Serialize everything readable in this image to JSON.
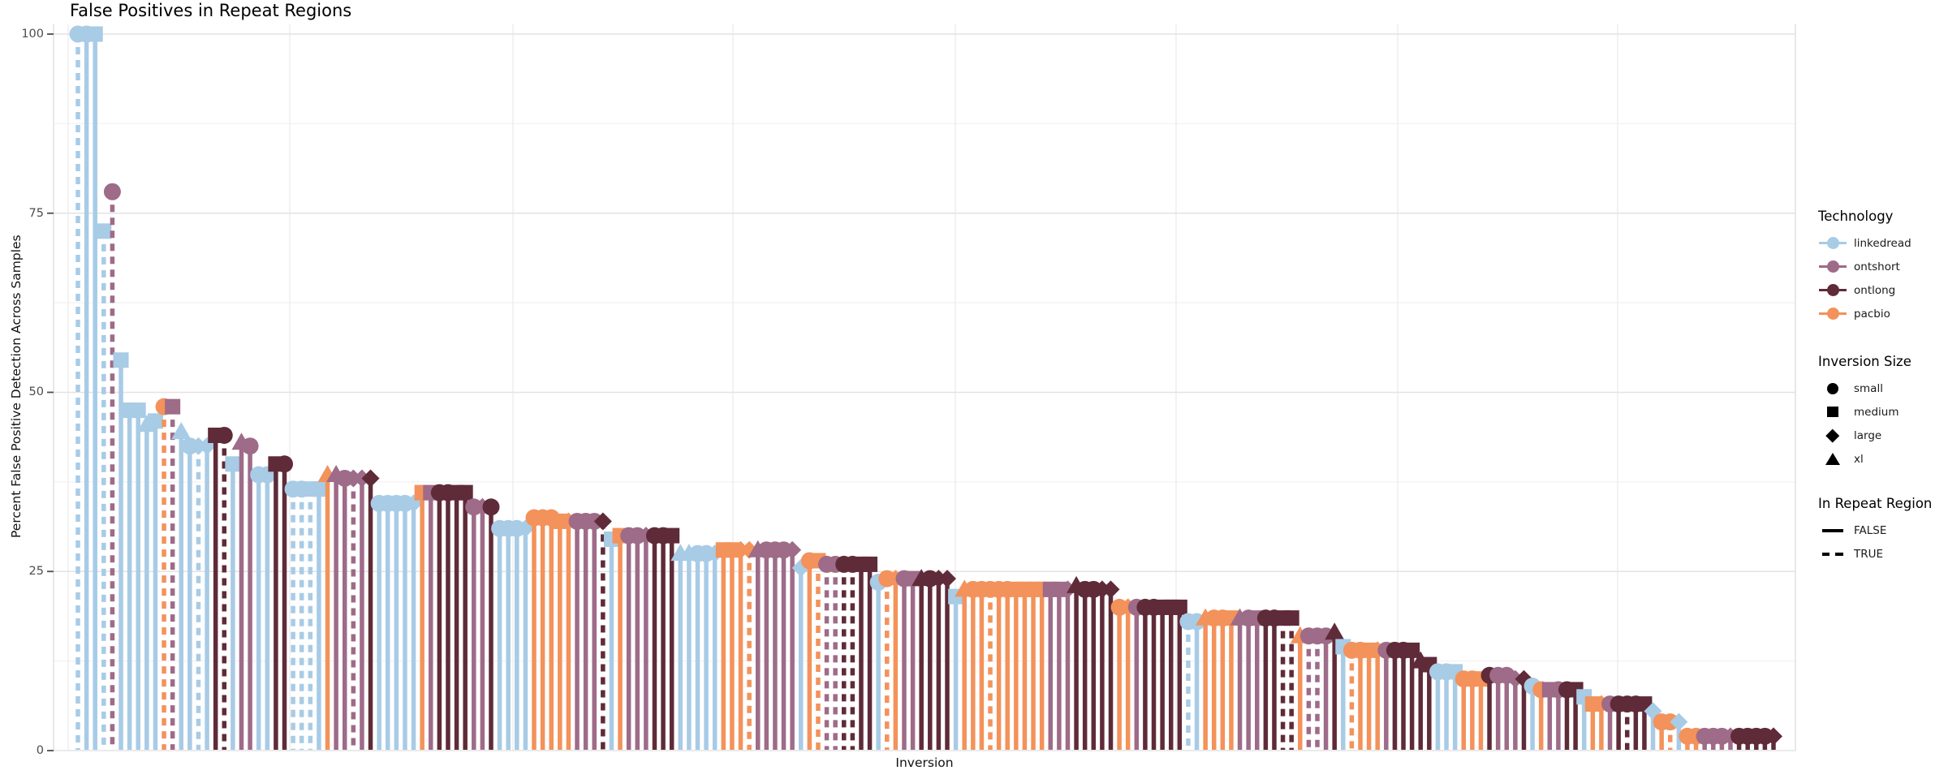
{
  "title": "False Positives in Repeat Regions",
  "axes": {
    "y_label": "Percent False Positive Detection Across Samples",
    "x_label": "Inversion",
    "y_tick_labels": [
      "100",
      "75",
      "50",
      "25",
      "0"
    ],
    "y_ticks": [
      100,
      75,
      50,
      25,
      0
    ],
    "y_range": [
      0,
      100
    ],
    "x_ticks_visible": false
  },
  "colors": {
    "background": "#ffffff",
    "grid_major": "#e3e3e3",
    "grid_minor": "#f2f2f2",
    "grid_vertical": "#ededed",
    "axis_text": "#4d4d4d",
    "tick_mark": "#4d4d4d",
    "text": "#111111"
  },
  "legend": {
    "technology": {
      "title": "Technology",
      "items": [
        {
          "code": "L",
          "label": "linkedread",
          "color": "#a8cbe6"
        },
        {
          "code": "S",
          "label": "ontshort",
          "color": "#9e6b88"
        },
        {
          "code": "O",
          "label": "ontlong",
          "color": "#5f2b38"
        },
        {
          "code": "P",
          "label": "pacbio",
          "color": "#f3925a"
        }
      ]
    },
    "size": {
      "title": "Inversion Size",
      "items": [
        {
          "code": "c",
          "label": "small",
          "shape": "circle"
        },
        {
          "code": "m",
          "label": "medium",
          "shape": "square"
        },
        {
          "code": "l",
          "label": "large",
          "shape": "diamond"
        },
        {
          "code": "x",
          "label": "xl",
          "shape": "triangle"
        }
      ]
    },
    "repeat": {
      "title": "In Repeat Region",
      "items": [
        {
          "code": 0,
          "label": "FALSE",
          "style": "solid"
        },
        {
          "code": 1,
          "label": "TRUE",
          "style": "dashed"
        }
      ]
    }
  },
  "chart_data": {
    "type": "lollipop",
    "title": "False Positives in Repeat Regions",
    "xlabel": "Inversion",
    "ylabel": "Percent False Positive Detection Across Samples",
    "ylim": [
      0,
      100
    ],
    "x_categories_note": "one unlabeled category per inversion, sorted roughly by decreasing false-positive rate",
    "point_format": [
      "technology_code",
      "size_code",
      "in_repeat_region(0=FALSE,1=TRUE)",
      "percent_value"
    ],
    "points": [
      [
        "L",
        "c",
        1,
        100
      ],
      [
        "L",
        "c",
        0,
        100
      ],
      [
        "L",
        "m",
        0,
        100
      ],
      [
        "L",
        "m",
        1,
        72.5
      ],
      [
        "S",
        "c",
        1,
        78
      ],
      [
        "L",
        "m",
        0,
        54.5
      ],
      [
        "L",
        "m",
        0,
        47.5
      ],
      [
        "L",
        "m",
        0,
        47.5
      ],
      [
        "L",
        "x",
        0,
        45.5
      ],
      [
        "L",
        "m",
        0,
        46
      ],
      [
        "P",
        "c",
        1,
        48
      ],
      [
        "S",
        "m",
        1,
        48
      ],
      [
        "L",
        "x",
        0,
        44.5
      ],
      [
        "L",
        "c",
        0,
        42.5
      ],
      [
        "L",
        "l",
        1,
        42.5
      ],
      [
        "L",
        "l",
        0,
        42.5
      ],
      [
        "O",
        "m",
        0,
        44
      ],
      [
        "O",
        "c",
        1,
        44
      ],
      [
        "L",
        "m",
        0,
        40
      ],
      [
        "S",
        "x",
        0,
        43
      ],
      [
        "S",
        "c",
        0,
        42.5
      ],
      [
        "L",
        "c",
        0,
        38.5
      ],
      [
        "L",
        "c",
        0,
        38.5
      ],
      [
        "O",
        "m",
        0,
        40
      ],
      [
        "O",
        "c",
        0,
        40
      ],
      [
        "L",
        "c",
        1,
        36.5
      ],
      [
        "L",
        "c",
        1,
        36.5
      ],
      [
        "L",
        "m",
        1,
        36.5
      ],
      [
        "L",
        "m",
        0,
        36.5
      ],
      [
        "P",
        "x",
        0,
        38.5
      ],
      [
        "S",
        "x",
        0,
        38.5
      ],
      [
        "S",
        "c",
        0,
        38
      ],
      [
        "S",
        "l",
        1,
        38
      ],
      [
        "S",
        "l",
        0,
        38
      ],
      [
        "O",
        "l",
        0,
        38
      ],
      [
        "L",
        "c",
        0,
        34.5
      ],
      [
        "L",
        "c",
        0,
        34.5
      ],
      [
        "L",
        "c",
        0,
        34.5
      ],
      [
        "L",
        "c",
        0,
        34.5
      ],
      [
        "L",
        "l",
        0,
        34.5
      ],
      [
        "P",
        "m",
        0,
        36
      ],
      [
        "S",
        "m",
        0,
        36
      ],
      [
        "O",
        "c",
        0,
        36
      ],
      [
        "O",
        "c",
        0,
        36
      ],
      [
        "O",
        "m",
        0,
        36
      ],
      [
        "O",
        "m",
        0,
        36
      ],
      [
        "S",
        "c",
        0,
        34
      ],
      [
        "S",
        "l",
        0,
        34
      ],
      [
        "O",
        "c",
        0,
        34
      ],
      [
        "L",
        "c",
        0,
        31
      ],
      [
        "L",
        "c",
        0,
        31
      ],
      [
        "L",
        "c",
        0,
        31
      ],
      [
        "L",
        "l",
        0,
        31
      ],
      [
        "P",
        "c",
        0,
        32.5
      ],
      [
        "P",
        "c",
        0,
        32.5
      ],
      [
        "P",
        "c",
        0,
        32.5
      ],
      [
        "P",
        "m",
        0,
        32
      ],
      [
        "P",
        "l",
        0,
        32
      ],
      [
        "S",
        "c",
        0,
        32
      ],
      [
        "S",
        "c",
        0,
        32
      ],
      [
        "S",
        "c",
        0,
        32
      ],
      [
        "O",
        "l",
        1,
        32
      ],
      [
        "L",
        "m",
        0,
        29.5
      ],
      [
        "P",
        "m",
        0,
        30
      ],
      [
        "S",
        "c",
        0,
        30
      ],
      [
        "S",
        "c",
        0,
        30
      ],
      [
        "S",
        "l",
        0,
        30
      ],
      [
        "O",
        "c",
        0,
        30
      ],
      [
        "O",
        "c",
        0,
        30
      ],
      [
        "O",
        "m",
        0,
        30
      ],
      [
        "L",
        "x",
        0,
        27.5
      ],
      [
        "L",
        "x",
        0,
        27.5
      ],
      [
        "L",
        "c",
        0,
        27.5
      ],
      [
        "L",
        "c",
        0,
        27.5
      ],
      [
        "L",
        "l",
        0,
        27.5
      ],
      [
        "P",
        "m",
        0,
        28
      ],
      [
        "P",
        "m",
        0,
        28
      ],
      [
        "P",
        "l",
        0,
        28
      ],
      [
        "P",
        "l",
        1,
        28
      ],
      [
        "S",
        "x",
        0,
        28
      ],
      [
        "S",
        "c",
        0,
        28
      ],
      [
        "S",
        "c",
        0,
        28
      ],
      [
        "S",
        "c",
        0,
        28
      ],
      [
        "S",
        "l",
        0,
        28
      ],
      [
        "L",
        "l",
        0,
        25.5
      ],
      [
        "P",
        "c",
        0,
        26.5
      ],
      [
        "P",
        "m",
        1,
        26.5
      ],
      [
        "S",
        "c",
        1,
        26
      ],
      [
        "S",
        "c",
        1,
        26
      ],
      [
        "O",
        "c",
        1,
        26
      ],
      [
        "O",
        "c",
        1,
        26
      ],
      [
        "O",
        "m",
        0,
        26
      ],
      [
        "O",
        "m",
        0,
        26
      ],
      [
        "L",
        "c",
        0,
        23.5
      ],
      [
        "P",
        "c",
        1,
        24
      ],
      [
        "P",
        "l",
        0,
        24
      ],
      [
        "S",
        "c",
        0,
        24
      ],
      [
        "S",
        "m",
        0,
        24
      ],
      [
        "O",
        "x",
        0,
        24
      ],
      [
        "O",
        "c",
        0,
        24
      ],
      [
        "O",
        "l",
        0,
        24
      ],
      [
        "O",
        "l",
        0,
        24
      ],
      [
        "L",
        "m",
        0,
        21.5
      ],
      [
        "P",
        "x",
        0,
        22.5
      ],
      [
        "P",
        "c",
        0,
        22.5
      ],
      [
        "P",
        "c",
        0,
        22.5
      ],
      [
        "P",
        "c",
        1,
        22.5
      ],
      [
        "P",
        "c",
        0,
        22.5
      ],
      [
        "P",
        "c",
        0,
        22.5
      ],
      [
        "P",
        "m",
        0,
        22.5
      ],
      [
        "P",
        "m",
        0,
        22.5
      ],
      [
        "P",
        "m",
        0,
        22.5
      ],
      [
        "P",
        "m",
        0,
        22.5
      ],
      [
        "S",
        "m",
        0,
        22.5
      ],
      [
        "S",
        "m",
        0,
        22.5
      ],
      [
        "S",
        "l",
        0,
        22.5
      ],
      [
        "O",
        "x",
        0,
        23
      ],
      [
        "O",
        "c",
        0,
        22.5
      ],
      [
        "O",
        "c",
        0,
        22.5
      ],
      [
        "O",
        "l",
        0,
        22.5
      ],
      [
        "O",
        "l",
        0,
        22.5
      ],
      [
        "P",
        "c",
        0,
        20
      ],
      [
        "P",
        "l",
        0,
        20
      ],
      [
        "S",
        "c",
        0,
        20
      ],
      [
        "O",
        "c",
        0,
        20
      ],
      [
        "O",
        "c",
        0,
        20
      ],
      [
        "O",
        "m",
        0,
        20
      ],
      [
        "O",
        "m",
        0,
        20
      ],
      [
        "O",
        "m",
        0,
        20
      ],
      [
        "L",
        "c",
        1,
        18
      ],
      [
        "L",
        "c",
        0,
        18
      ],
      [
        "P",
        "x",
        0,
        18.5
      ],
      [
        "P",
        "c",
        0,
        18.5
      ],
      [
        "P",
        "c",
        0,
        18.5
      ],
      [
        "P",
        "m",
        0,
        18.5
      ],
      [
        "S",
        "x",
        0,
        18.5
      ],
      [
        "S",
        "c",
        0,
        18.5
      ],
      [
        "S",
        "m",
        0,
        18.5
      ],
      [
        "O",
        "c",
        0,
        18.5
      ],
      [
        "O",
        "c",
        0,
        18.5
      ],
      [
        "O",
        "m",
        1,
        18.5
      ],
      [
        "O",
        "m",
        1,
        18.5
      ],
      [
        "P",
        "x",
        0,
        16
      ],
      [
        "S",
        "c",
        1,
        16
      ],
      [
        "S",
        "c",
        1,
        16
      ],
      [
        "S",
        "c",
        0,
        16
      ],
      [
        "O",
        "x",
        0,
        16.5
      ],
      [
        "L",
        "m",
        0,
        14.5
      ],
      [
        "P",
        "c",
        1,
        14
      ],
      [
        "P",
        "c",
        0,
        14
      ],
      [
        "P",
        "m",
        0,
        14
      ],
      [
        "P",
        "l",
        0,
        14
      ],
      [
        "S",
        "c",
        0,
        14
      ],
      [
        "O",
        "c",
        0,
        14
      ],
      [
        "O",
        "c",
        0,
        14
      ],
      [
        "O",
        "m",
        0,
        14
      ],
      [
        "O",
        "x",
        0,
        12.5
      ],
      [
        "O",
        "m",
        0,
        12
      ],
      [
        "L",
        "c",
        0,
        11
      ],
      [
        "L",
        "c",
        0,
        11
      ],
      [
        "L",
        "m",
        0,
        11
      ],
      [
        "P",
        "c",
        0,
        10
      ],
      [
        "P",
        "c",
        0,
        10
      ],
      [
        "P",
        "m",
        0,
        10
      ],
      [
        "O",
        "c",
        0,
        10.5
      ],
      [
        "S",
        "c",
        0,
        10.5
      ],
      [
        "S",
        "c",
        0,
        10.5
      ],
      [
        "S",
        "l",
        0,
        10
      ],
      [
        "O",
        "l",
        0,
        10
      ],
      [
        "L",
        "c",
        0,
        9
      ],
      [
        "P",
        "c",
        0,
        8.5
      ],
      [
        "S",
        "m",
        0,
        8.5
      ],
      [
        "S",
        "c",
        0,
        8.5
      ],
      [
        "O",
        "c",
        0,
        8.5
      ],
      [
        "O",
        "m",
        0,
        8.5
      ],
      [
        "L",
        "m",
        0,
        7.5
      ],
      [
        "P",
        "m",
        0,
        6.5
      ],
      [
        "P",
        "l",
        0,
        6.5
      ],
      [
        "S",
        "c",
        0,
        6.5
      ],
      [
        "O",
        "c",
        0,
        6.5
      ],
      [
        "O",
        "c",
        1,
        6.5
      ],
      [
        "O",
        "c",
        0,
        6.5
      ],
      [
        "O",
        "m",
        0,
        6.5
      ],
      [
        "L",
        "l",
        0,
        5.5
      ],
      [
        "P",
        "c",
        0,
        4
      ],
      [
        "P",
        "c",
        1,
        4
      ],
      [
        "L",
        "l",
        0,
        4
      ],
      [
        "P",
        "c",
        0,
        2
      ],
      [
        "P",
        "c",
        0,
        2
      ],
      [
        "S",
        "c",
        0,
        2
      ],
      [
        "S",
        "c",
        0,
        2
      ],
      [
        "S",
        "c",
        0,
        2
      ],
      [
        "S",
        "l",
        0,
        2
      ],
      [
        "O",
        "c",
        0,
        2
      ],
      [
        "O",
        "c",
        0,
        2
      ],
      [
        "O",
        "c",
        0,
        2
      ],
      [
        "O",
        "c",
        0,
        2
      ],
      [
        "O",
        "l",
        0,
        2
      ]
    ]
  }
}
